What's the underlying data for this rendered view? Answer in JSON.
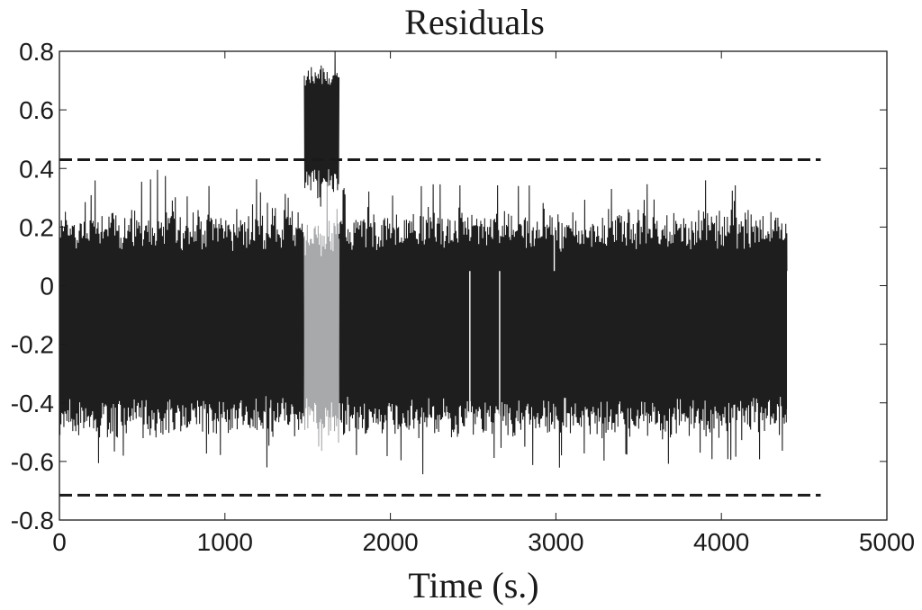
{
  "chart_data": {
    "type": "line",
    "title": "Residuals",
    "xlabel": "Time (s.)",
    "ylabel": "",
    "xlim": [
      0,
      5000
    ],
    "ylim": [
      -0.8,
      0.8
    ],
    "x_ticks": [
      "0",
      "1000",
      "2000",
      "3000",
      "4000",
      "5000"
    ],
    "y_ticks": [
      "0.8",
      "0.6",
      "0.4",
      "0.2",
      "0",
      "-0.2",
      "-0.4",
      "-0.6",
      "-0.8"
    ],
    "grid": false,
    "colors": {
      "signal": "#1e1e1e",
      "highlight": "#a8a9ab",
      "threshold": "#1a1a1a",
      "axes": "#1a1a1a"
    },
    "series": [
      {
        "role": "signal",
        "color": "#1e1e1e",
        "segments": [
          {
            "x_range": [
              0,
              1480
            ],
            "mean": -0.13,
            "amplitude": 0.4
          },
          {
            "x_range": [
              1480,
              1690
            ],
            "mean": 0.54,
            "amplitude": 0.22
          },
          {
            "x_range": [
              1690,
              4400
            ],
            "mean": -0.13,
            "amplitude": 0.4
          }
        ],
        "spikes": [
          {
            "x": 2480,
            "y": -0.45
          },
          {
            "x": 2660,
            "y": -0.46
          },
          {
            "x": 2990,
            "y": 0.42
          },
          {
            "x": 4400,
            "y": -0.57
          }
        ]
      },
      {
        "role": "highlight",
        "color": "#a8a9ab",
        "segments": [
          {
            "x_range": [
              1480,
              1690
            ],
            "mean": -0.14,
            "amplitude": 0.38
          }
        ]
      }
    ],
    "thresholds": [
      {
        "y": 0.43,
        "x_range": [
          0,
          4600
        ],
        "style": "dashed"
      },
      {
        "y": -0.715,
        "x_range": [
          0,
          4600
        ],
        "style": "dashed"
      }
    ]
  }
}
